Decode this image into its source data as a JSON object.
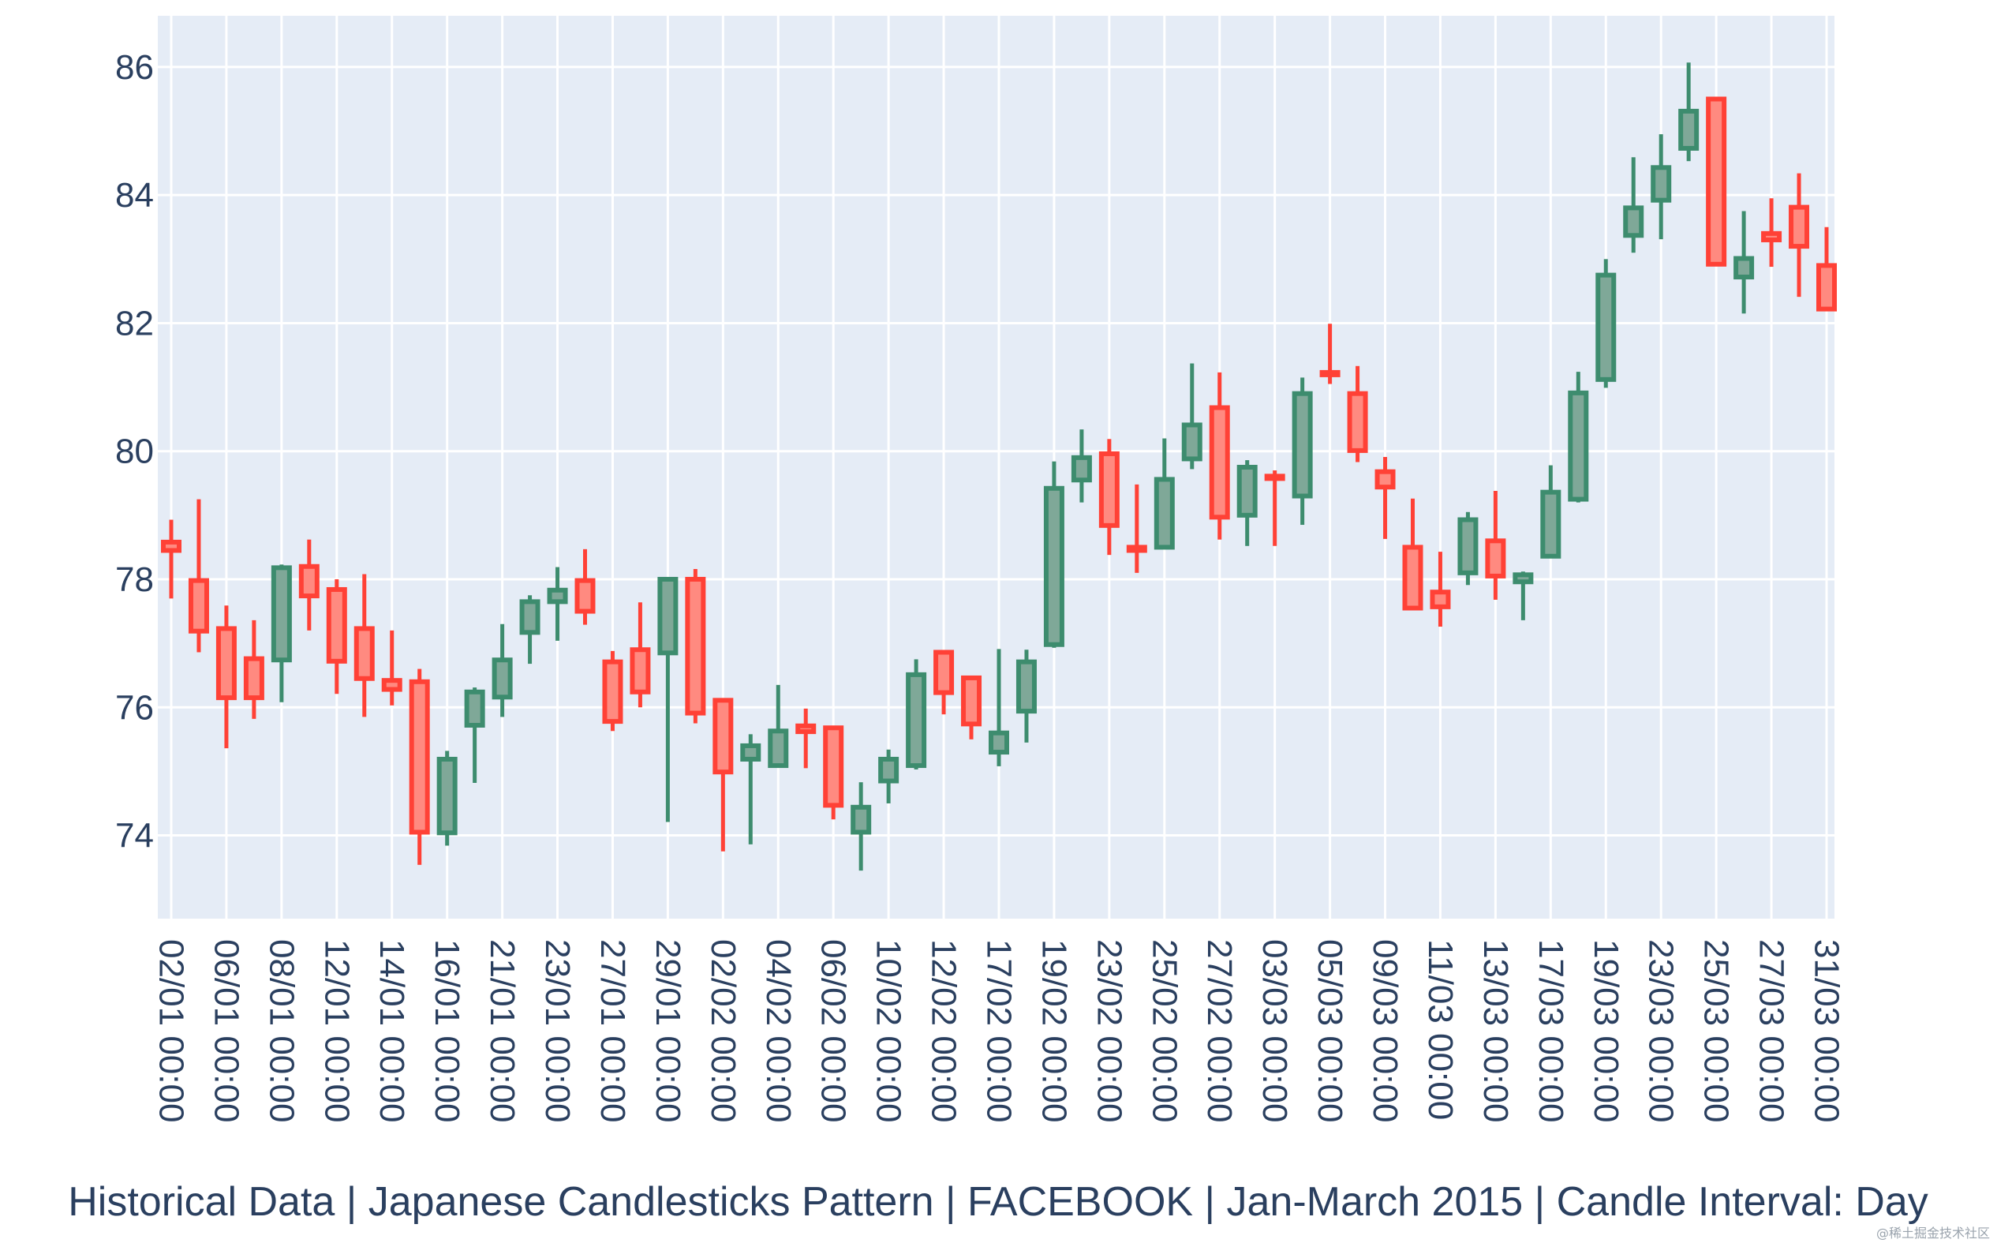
{
  "chart_data": {
    "type": "candlestick",
    "title": "Historical Data | Japanese Candlesticks Pattern | FACEBOOK | Jan-March 2015 | Candle Interval: Day",
    "xlabel": "",
    "ylabel": "",
    "ylim": [
      72.7,
      86.8
    ],
    "yticks": [
      74,
      76,
      78,
      80,
      82,
      84,
      86
    ],
    "grid": true,
    "legend": "none",
    "colors": {
      "increasing": "#3d8c6e",
      "decreasing": "#ff4136",
      "background": "#e5ecf6",
      "grid": "#ffffff",
      "text": "#2a3f5f"
    },
    "xticks": [
      "02/01 00:00",
      "06/01 00:00",
      "08/01 00:00",
      "12/01 00:00",
      "14/01 00:00",
      "16/01 00:00",
      "21/01 00:00",
      "23/01 00:00",
      "27/01 00:00",
      "29/01 00:00",
      "02/02 00:00",
      "04/02 00:00",
      "06/02 00:00",
      "10/02 00:00",
      "12/02 00:00",
      "17/02 00:00",
      "19/02 00:00",
      "23/02 00:00",
      "25/02 00:00",
      "27/02 00:00",
      "03/03 00:00",
      "05/03 00:00",
      "09/03 00:00",
      "11/03 00:00",
      "13/03 00:00",
      "17/03 00:00",
      "19/03 00:00",
      "23/03 00:00",
      "25/03 00:00",
      "27/03 00:00",
      "31/03 00:00"
    ],
    "candles": [
      {
        "date": "02/01",
        "open": 78.58,
        "high": 78.93,
        "low": 77.7,
        "close": 78.45
      },
      {
        "date": "05/01",
        "open": 77.98,
        "high": 79.25,
        "low": 76.86,
        "close": 77.19
      },
      {
        "date": "06/01",
        "open": 77.23,
        "high": 77.59,
        "low": 75.36,
        "close": 76.15
      },
      {
        "date": "07/01",
        "open": 76.76,
        "high": 77.36,
        "low": 75.82,
        "close": 76.15
      },
      {
        "date": "08/01",
        "open": 76.74,
        "high": 78.23,
        "low": 76.08,
        "close": 78.18
      },
      {
        "date": "09/01",
        "open": 78.2,
        "high": 78.62,
        "low": 77.2,
        "close": 77.74
      },
      {
        "date": "12/01",
        "open": 77.84,
        "high": 78.0,
        "low": 76.21,
        "close": 76.72
      },
      {
        "date": "13/01",
        "open": 77.23,
        "high": 78.08,
        "low": 75.85,
        "close": 76.45
      },
      {
        "date": "14/01",
        "open": 76.42,
        "high": 77.2,
        "low": 76.03,
        "close": 76.28
      },
      {
        "date": "15/01",
        "open": 76.4,
        "high": 76.6,
        "low": 73.54,
        "close": 74.05
      },
      {
        "date": "16/01",
        "open": 74.04,
        "high": 75.32,
        "low": 73.84,
        "close": 75.19
      },
      {
        "date": "20/01",
        "open": 75.72,
        "high": 76.31,
        "low": 74.82,
        "close": 76.24
      },
      {
        "date": "21/01",
        "open": 76.16,
        "high": 77.3,
        "low": 75.85,
        "close": 76.74
      },
      {
        "date": "22/01",
        "open": 77.17,
        "high": 77.75,
        "low": 76.68,
        "close": 77.65
      },
      {
        "date": "23/01",
        "open": 77.65,
        "high": 78.19,
        "low": 77.04,
        "close": 77.83
      },
      {
        "date": "26/01",
        "open": 77.98,
        "high": 78.47,
        "low": 77.29,
        "close": 77.5
      },
      {
        "date": "27/01",
        "open": 76.71,
        "high": 76.88,
        "low": 75.63,
        "close": 75.78
      },
      {
        "date": "28/01",
        "open": 76.9,
        "high": 77.64,
        "low": 76.0,
        "close": 76.24
      },
      {
        "date": "29/01",
        "open": 76.85,
        "high": 78.02,
        "low": 74.21,
        "close": 78.0
      },
      {
        "date": "30/01",
        "open": 78.0,
        "high": 78.16,
        "low": 75.75,
        "close": 75.91
      },
      {
        "date": "02/02",
        "open": 76.11,
        "high": 76.14,
        "low": 73.75,
        "close": 74.99
      },
      {
        "date": "03/02",
        "open": 75.19,
        "high": 75.58,
        "low": 73.86,
        "close": 75.4
      },
      {
        "date": "04/02",
        "open": 75.09,
        "high": 76.35,
        "low": 75.06,
        "close": 75.63
      },
      {
        "date": "05/02",
        "open": 75.71,
        "high": 75.98,
        "low": 75.05,
        "close": 75.62
      },
      {
        "date": "06/02",
        "open": 75.68,
        "high": 75.7,
        "low": 74.25,
        "close": 74.47
      },
      {
        "date": "09/02",
        "open": 74.05,
        "high": 74.83,
        "low": 73.45,
        "close": 74.44
      },
      {
        "date": "10/02",
        "open": 74.85,
        "high": 75.34,
        "low": 74.5,
        "close": 75.19
      },
      {
        "date": "11/02",
        "open": 75.09,
        "high": 76.75,
        "low": 75.03,
        "close": 76.51
      },
      {
        "date": "12/02",
        "open": 76.86,
        "high": 76.87,
        "low": 75.89,
        "close": 76.23
      },
      {
        "date": "13/02",
        "open": 76.46,
        "high": 76.48,
        "low": 75.5,
        "close": 75.74
      },
      {
        "date": "17/02",
        "open": 75.3,
        "high": 76.91,
        "low": 75.08,
        "close": 75.6
      },
      {
        "date": "18/02",
        "open": 75.94,
        "high": 76.9,
        "low": 75.45,
        "close": 76.71
      },
      {
        "date": "19/02",
        "open": 76.98,
        "high": 79.84,
        "low": 76.93,
        "close": 79.42
      },
      {
        "date": "20/02",
        "open": 79.55,
        "high": 80.34,
        "low": 79.2,
        "close": 79.9
      },
      {
        "date": "23/02",
        "open": 79.96,
        "high": 80.19,
        "low": 78.38,
        "close": 78.84
      },
      {
        "date": "24/02",
        "open": 78.5,
        "high": 79.48,
        "low": 78.1,
        "close": 78.45
      },
      {
        "date": "25/02",
        "open": 78.5,
        "high": 80.2,
        "low": 78.5,
        "close": 79.56
      },
      {
        "date": "26/02",
        "open": 79.88,
        "high": 81.37,
        "low": 79.72,
        "close": 80.41
      },
      {
        "date": "27/02",
        "open": 80.68,
        "high": 81.23,
        "low": 78.62,
        "close": 78.97
      },
      {
        "date": "02/03",
        "open": 79.0,
        "high": 79.86,
        "low": 78.52,
        "close": 79.75
      },
      {
        "date": "03/03",
        "open": 79.61,
        "high": 79.7,
        "low": 78.52,
        "close": 79.6
      },
      {
        "date": "04/03",
        "open": 79.3,
        "high": 81.15,
        "low": 78.85,
        "close": 80.9
      },
      {
        "date": "05/03",
        "open": 81.23,
        "high": 81.99,
        "low": 81.05,
        "close": 81.21
      },
      {
        "date": "06/03",
        "open": 80.9,
        "high": 81.33,
        "low": 79.83,
        "close": 80.01
      },
      {
        "date": "09/03",
        "open": 79.68,
        "high": 79.91,
        "low": 78.63,
        "close": 79.44
      },
      {
        "date": "10/03",
        "open": 78.5,
        "high": 79.26,
        "low": 77.55,
        "close": 77.55
      },
      {
        "date": "11/03",
        "open": 77.8,
        "high": 78.43,
        "low": 77.26,
        "close": 77.57
      },
      {
        "date": "12/03",
        "open": 78.1,
        "high": 79.05,
        "low": 77.91,
        "close": 78.93
      },
      {
        "date": "13/03",
        "open": 78.6,
        "high": 79.38,
        "low": 77.68,
        "close": 78.05
      },
      {
        "date": "16/03",
        "open": 77.96,
        "high": 78.12,
        "low": 77.36,
        "close": 78.07
      },
      {
        "date": "17/03",
        "open": 78.36,
        "high": 79.78,
        "low": 78.34,
        "close": 79.36
      },
      {
        "date": "18/03",
        "open": 79.25,
        "high": 81.24,
        "low": 79.2,
        "close": 80.91
      },
      {
        "date": "19/03",
        "open": 81.12,
        "high": 83.0,
        "low": 80.99,
        "close": 82.75
      },
      {
        "date": "20/03",
        "open": 83.37,
        "high": 84.59,
        "low": 83.1,
        "close": 83.8
      },
      {
        "date": "23/03",
        "open": 83.92,
        "high": 84.95,
        "low": 83.31,
        "close": 84.43
      },
      {
        "date": "24/03",
        "open": 84.73,
        "high": 86.07,
        "low": 84.53,
        "close": 85.31
      },
      {
        "date": "25/03",
        "open": 85.5,
        "high": 85.5,
        "low": 82.92,
        "close": 82.92
      },
      {
        "date": "26/03",
        "open": 82.72,
        "high": 83.75,
        "low": 82.15,
        "close": 83.01
      },
      {
        "date": "27/03",
        "open": 83.4,
        "high": 83.95,
        "low": 82.88,
        "close": 83.3
      },
      {
        "date": "30/03",
        "open": 83.81,
        "high": 84.34,
        "low": 82.41,
        "close": 83.2
      },
      {
        "date": "31/03",
        "open": 82.9,
        "high": 83.5,
        "low": 82.21,
        "close": 82.22
      }
    ]
  },
  "watermark": "@稀土掘金技术社区"
}
